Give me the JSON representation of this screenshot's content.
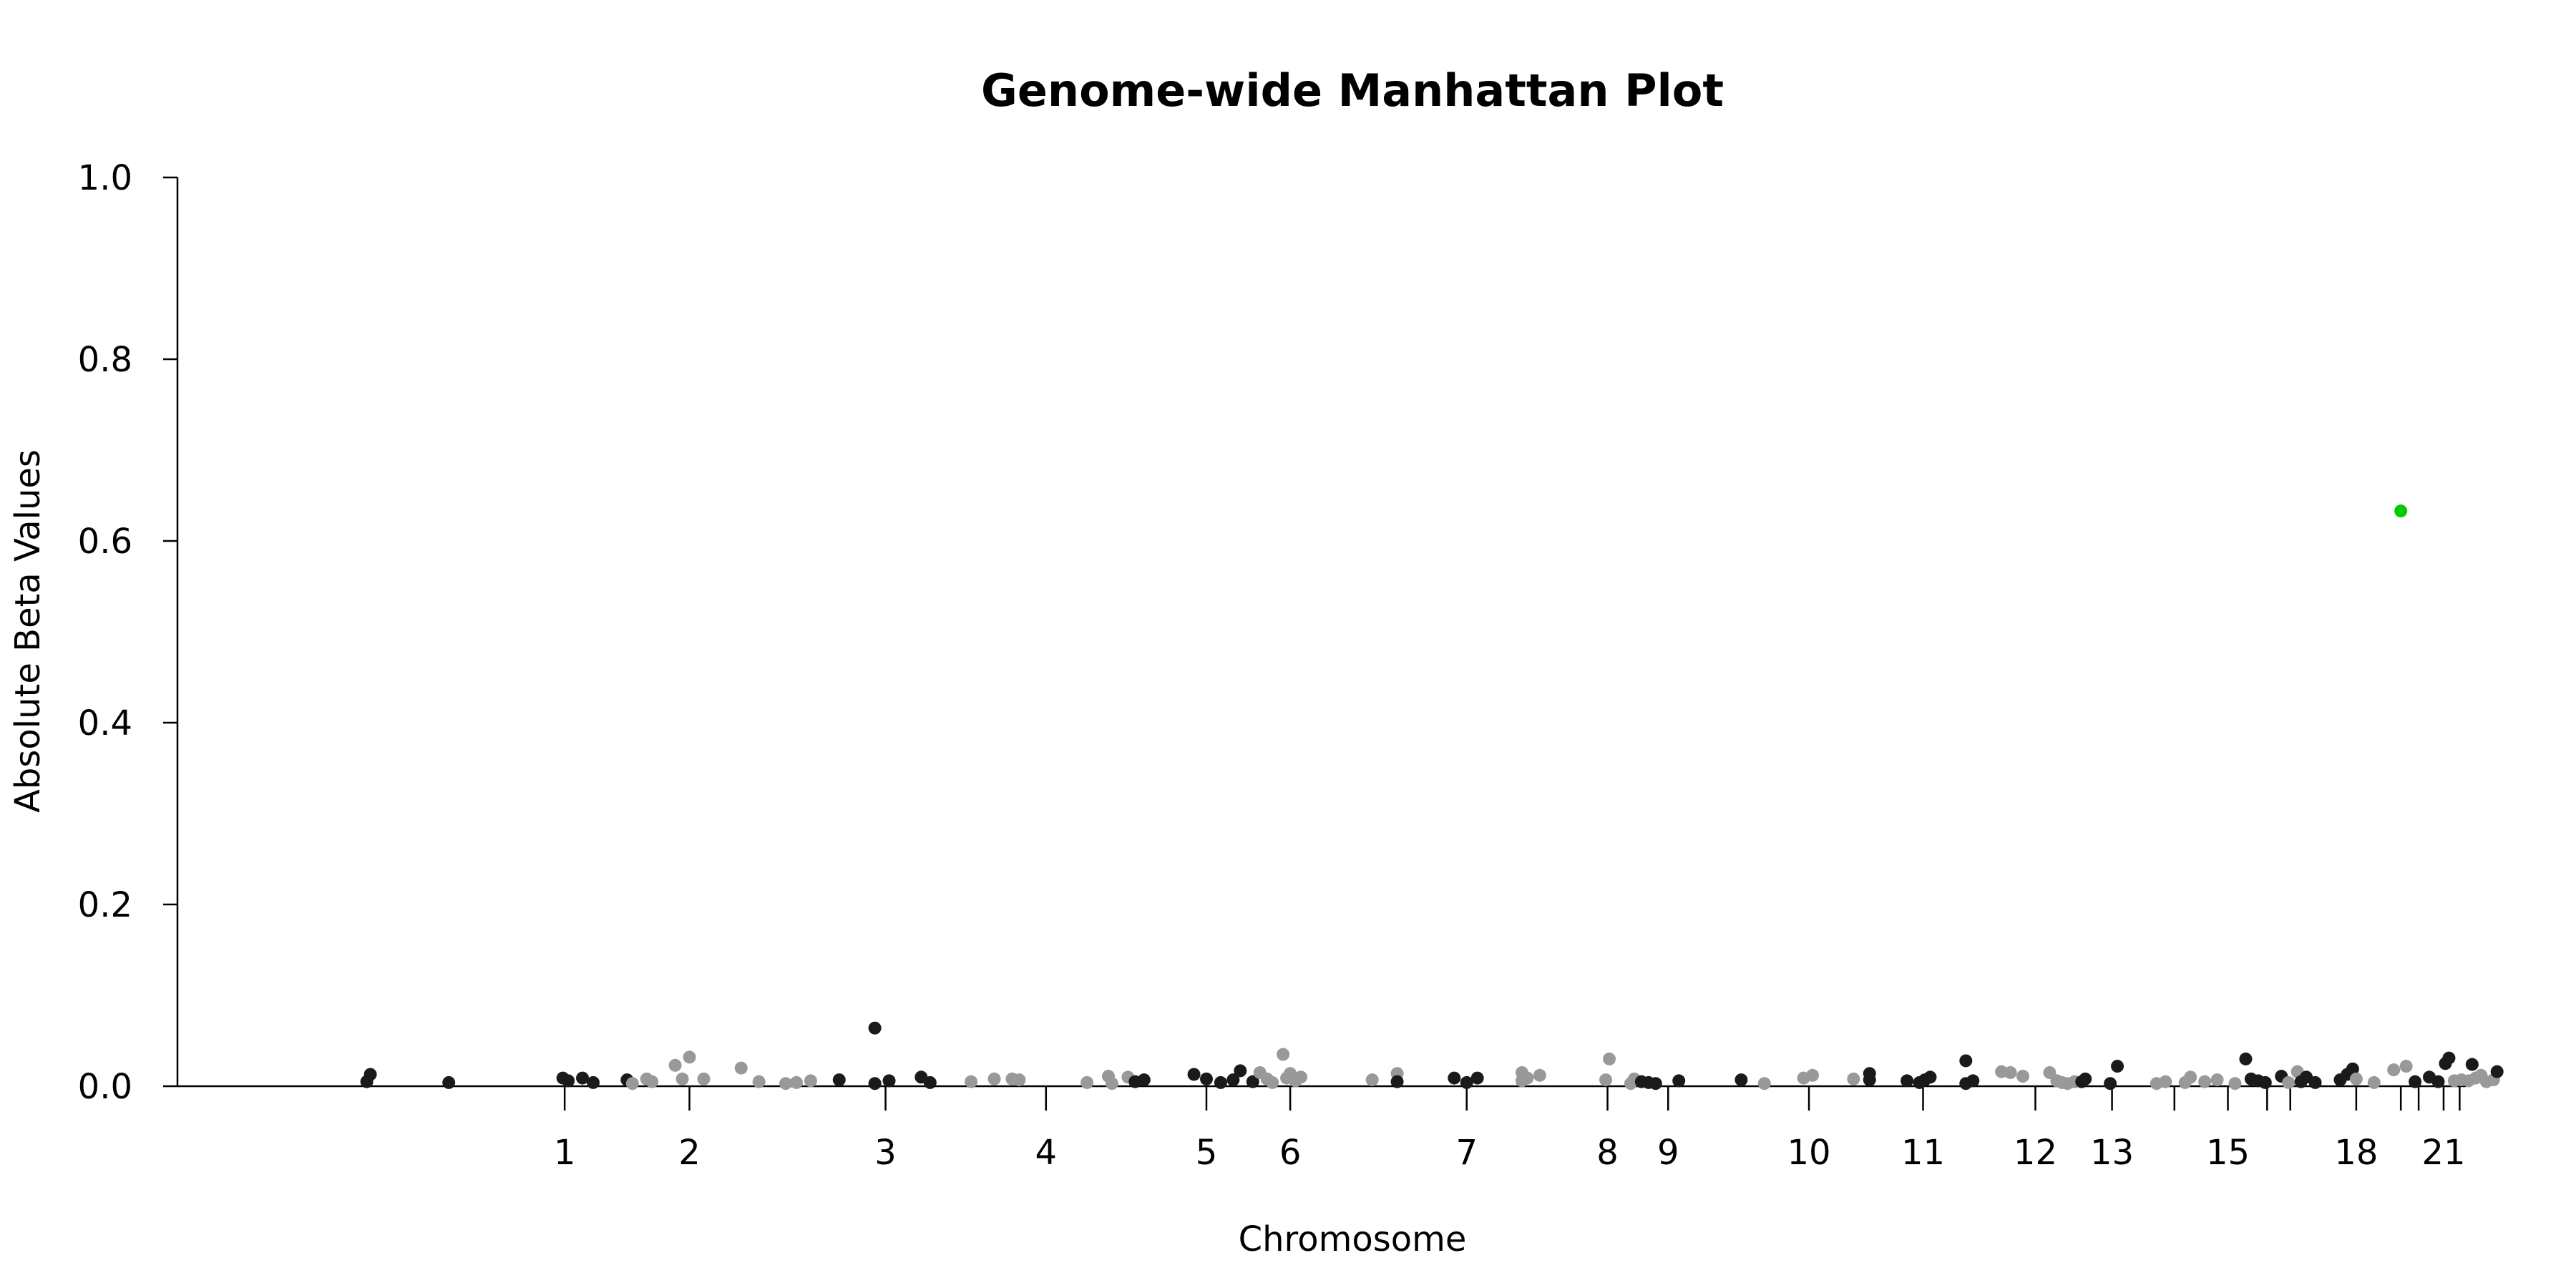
{
  "chart_data": {
    "type": "scatter",
    "title": "Genome-wide Manhattan Plot",
    "xlabel": "Chromosome",
    "ylabel": "Absolute Beta Values",
    "ylim": [
      0,
      1.0
    ],
    "yticks": [
      "0.0",
      "0.2",
      "0.4",
      "0.6",
      "0.8",
      "1.0"
    ],
    "xticks": [
      "1",
      "2",
      "3",
      "4",
      "5",
      "6",
      "7",
      "8",
      "9",
      "10",
      "11",
      "12",
      "13",
      "",
      "15",
      "",
      "",
      "18",
      "",
      "",
      "21",
      ""
    ],
    "xtick_positions": [
      2.0,
      2.7,
      3.8,
      4.7,
      5.6,
      6.07,
      7.06,
      7.85,
      8.19,
      8.98,
      9.62,
      10.25,
      10.68,
      11.03,
      11.33,
      11.55,
      11.68,
      12.05,
      12.3,
      12.4,
      12.54,
      12.63
    ],
    "xlim": [
      0.5,
      12.72
    ],
    "grid": false,
    "colors": {
      "dark": "#1a1a1a",
      "grey": "#999999",
      "highlight": "#00cc00"
    },
    "points": [
      {
        "x": 0.89,
        "y": 0.005,
        "c": "dark"
      },
      {
        "x": 0.91,
        "y": 0.013,
        "c": "dark"
      },
      {
        "x": 1.35,
        "y": 0.004,
        "c": "dark"
      },
      {
        "x": 1.99,
        "y": 0.009,
        "c": "dark"
      },
      {
        "x": 2.02,
        "y": 0.006,
        "c": "dark"
      },
      {
        "x": 2.1,
        "y": 0.009,
        "c": "dark"
      },
      {
        "x": 2.16,
        "y": 0.004,
        "c": "dark"
      },
      {
        "x": 2.35,
        "y": 0.007,
        "c": "dark"
      },
      {
        "x": 2.38,
        "y": 0.003,
        "c": "grey"
      },
      {
        "x": 2.46,
        "y": 0.008,
        "c": "grey"
      },
      {
        "x": 2.49,
        "y": 0.005,
        "c": "grey"
      },
      {
        "x": 2.62,
        "y": 0.023,
        "c": "grey"
      },
      {
        "x": 2.66,
        "y": 0.008,
        "c": "grey"
      },
      {
        "x": 2.7,
        "y": 0.032,
        "c": "grey"
      },
      {
        "x": 2.78,
        "y": 0.008,
        "c": "grey"
      },
      {
        "x": 2.99,
        "y": 0.02,
        "c": "grey"
      },
      {
        "x": 3.09,
        "y": 0.005,
        "c": "grey"
      },
      {
        "x": 3.24,
        "y": 0.003,
        "c": "grey"
      },
      {
        "x": 3.3,
        "y": 0.004,
        "c": "grey"
      },
      {
        "x": 3.38,
        "y": 0.006,
        "c": "grey"
      },
      {
        "x": 3.54,
        "y": 0.007,
        "c": "dark"
      },
      {
        "x": 3.74,
        "y": 0.064,
        "c": "dark"
      },
      {
        "x": 3.74,
        "y": 0.003,
        "c": "dark"
      },
      {
        "x": 3.82,
        "y": 0.006,
        "c": "dark"
      },
      {
        "x": 4.0,
        "y": 0.01,
        "c": "dark"
      },
      {
        "x": 4.05,
        "y": 0.004,
        "c": "dark"
      },
      {
        "x": 4.28,
        "y": 0.005,
        "c": "grey"
      },
      {
        "x": 4.41,
        "y": 0.008,
        "c": "grey"
      },
      {
        "x": 4.51,
        "y": 0.008,
        "c": "grey"
      },
      {
        "x": 4.55,
        "y": 0.007,
        "c": "grey"
      },
      {
        "x": 4.93,
        "y": 0.004,
        "c": "grey"
      },
      {
        "x": 5.05,
        "y": 0.011,
        "c": "grey"
      },
      {
        "x": 5.07,
        "y": 0.003,
        "c": "grey"
      },
      {
        "x": 5.16,
        "y": 0.01,
        "c": "grey"
      },
      {
        "x": 5.2,
        "y": 0.005,
        "c": "dark"
      },
      {
        "x": 5.25,
        "y": 0.007,
        "c": "dark"
      },
      {
        "x": 5.53,
        "y": 0.013,
        "c": "dark"
      },
      {
        "x": 5.6,
        "y": 0.008,
        "c": "dark"
      },
      {
        "x": 5.68,
        "y": 0.004,
        "c": "dark"
      },
      {
        "x": 5.75,
        "y": 0.007,
        "c": "dark"
      },
      {
        "x": 5.79,
        "y": 0.017,
        "c": "dark"
      },
      {
        "x": 5.86,
        "y": 0.005,
        "c": "dark"
      },
      {
        "x": 5.9,
        "y": 0.015,
        "c": "grey"
      },
      {
        "x": 5.94,
        "y": 0.008,
        "c": "grey"
      },
      {
        "x": 5.97,
        "y": 0.004,
        "c": "grey"
      },
      {
        "x": 6.03,
        "y": 0.035,
        "c": "grey"
      },
      {
        "x": 6.05,
        "y": 0.009,
        "c": "grey"
      },
      {
        "x": 6.07,
        "y": 0.014,
        "c": "grey"
      },
      {
        "x": 6.1,
        "y": 0.006,
        "c": "grey"
      },
      {
        "x": 6.13,
        "y": 0.01,
        "c": "grey"
      },
      {
        "x": 6.53,
        "y": 0.007,
        "c": "grey"
      },
      {
        "x": 6.67,
        "y": 0.014,
        "c": "grey"
      },
      {
        "x": 6.67,
        "y": 0.005,
        "c": "dark"
      },
      {
        "x": 6.99,
        "y": 0.009,
        "c": "dark"
      },
      {
        "x": 7.06,
        "y": 0.004,
        "c": "dark"
      },
      {
        "x": 7.12,
        "y": 0.009,
        "c": "dark"
      },
      {
        "x": 7.37,
        "y": 0.015,
        "c": "grey"
      },
      {
        "x": 7.37,
        "y": 0.006,
        "c": "grey"
      },
      {
        "x": 7.4,
        "y": 0.009,
        "c": "grey"
      },
      {
        "x": 7.47,
        "y": 0.012,
        "c": "grey"
      },
      {
        "x": 7.84,
        "y": 0.007,
        "c": "grey"
      },
      {
        "x": 7.86,
        "y": 0.03,
        "c": "grey"
      },
      {
        "x": 7.98,
        "y": 0.003,
        "c": "grey"
      },
      {
        "x": 8.0,
        "y": 0.008,
        "c": "grey"
      },
      {
        "x": 8.04,
        "y": 0.005,
        "c": "dark"
      },
      {
        "x": 8.08,
        "y": 0.004,
        "c": "dark"
      },
      {
        "x": 8.12,
        "y": 0.003,
        "c": "dark"
      },
      {
        "x": 8.25,
        "y": 0.006,
        "c": "dark"
      },
      {
        "x": 8.6,
        "y": 0.007,
        "c": "dark"
      },
      {
        "x": 8.73,
        "y": 0.003,
        "c": "grey"
      },
      {
        "x": 8.95,
        "y": 0.009,
        "c": "grey"
      },
      {
        "x": 9.0,
        "y": 0.012,
        "c": "grey"
      },
      {
        "x": 9.23,
        "y": 0.008,
        "c": "grey"
      },
      {
        "x": 9.32,
        "y": 0.014,
        "c": "dark"
      },
      {
        "x": 9.32,
        "y": 0.007,
        "c": "dark"
      },
      {
        "x": 9.53,
        "y": 0.006,
        "c": "dark"
      },
      {
        "x": 9.6,
        "y": 0.004,
        "c": "dark"
      },
      {
        "x": 9.63,
        "y": 0.007,
        "c": "dark"
      },
      {
        "x": 9.66,
        "y": 0.01,
        "c": "dark"
      },
      {
        "x": 9.86,
        "y": 0.028,
        "c": "dark"
      },
      {
        "x": 9.86,
        "y": 0.003,
        "c": "dark"
      },
      {
        "x": 9.9,
        "y": 0.006,
        "c": "dark"
      },
      {
        "x": 10.06,
        "y": 0.016,
        "c": "grey"
      },
      {
        "x": 10.11,
        "y": 0.015,
        "c": "grey"
      },
      {
        "x": 10.18,
        "y": 0.011,
        "c": "grey"
      },
      {
        "x": 10.33,
        "y": 0.015,
        "c": "grey"
      },
      {
        "x": 10.37,
        "y": 0.006,
        "c": "grey"
      },
      {
        "x": 10.4,
        "y": 0.004,
        "c": "grey"
      },
      {
        "x": 10.43,
        "y": 0.003,
        "c": "grey"
      },
      {
        "x": 10.47,
        "y": 0.005,
        "c": "grey"
      },
      {
        "x": 10.51,
        "y": 0.005,
        "c": "dark"
      },
      {
        "x": 10.53,
        "y": 0.008,
        "c": "dark"
      },
      {
        "x": 10.67,
        "y": 0.003,
        "c": "dark"
      },
      {
        "x": 10.71,
        "y": 0.022,
        "c": "dark"
      },
      {
        "x": 10.93,
        "y": 0.003,
        "c": "grey"
      },
      {
        "x": 10.98,
        "y": 0.005,
        "c": "grey"
      },
      {
        "x": 11.09,
        "y": 0.004,
        "c": "grey"
      },
      {
        "x": 11.12,
        "y": 0.01,
        "c": "grey"
      },
      {
        "x": 11.2,
        "y": 0.005,
        "c": "grey"
      },
      {
        "x": 11.27,
        "y": 0.007,
        "c": "grey"
      },
      {
        "x": 11.37,
        "y": 0.003,
        "c": "grey"
      },
      {
        "x": 11.43,
        "y": 0.03,
        "c": "dark"
      },
      {
        "x": 11.46,
        "y": 0.008,
        "c": "dark"
      },
      {
        "x": 11.5,
        "y": 0.006,
        "c": "dark"
      },
      {
        "x": 11.54,
        "y": 0.004,
        "c": "dark"
      },
      {
        "x": 11.63,
        "y": 0.011,
        "c": "dark"
      },
      {
        "x": 11.67,
        "y": 0.004,
        "c": "grey"
      },
      {
        "x": 11.72,
        "y": 0.016,
        "c": "grey"
      },
      {
        "x": 11.74,
        "y": 0.005,
        "c": "dark"
      },
      {
        "x": 11.77,
        "y": 0.01,
        "c": "dark"
      },
      {
        "x": 11.82,
        "y": 0.004,
        "c": "dark"
      },
      {
        "x": 11.96,
        "y": 0.007,
        "c": "dark"
      },
      {
        "x": 12.0,
        "y": 0.013,
        "c": "dark"
      },
      {
        "x": 12.03,
        "y": 0.019,
        "c": "dark"
      },
      {
        "x": 12.05,
        "y": 0.008,
        "c": "grey"
      },
      {
        "x": 12.15,
        "y": 0.004,
        "c": "grey"
      },
      {
        "x": 12.26,
        "y": 0.018,
        "c": "grey"
      },
      {
        "x": 12.33,
        "y": 0.022,
        "c": "grey"
      },
      {
        "x": 12.38,
        "y": 0.005,
        "c": "dark"
      },
      {
        "x": 12.46,
        "y": 0.01,
        "c": "dark"
      },
      {
        "x": 12.51,
        "y": 0.005,
        "c": "dark"
      },
      {
        "x": 12.55,
        "y": 0.025,
        "c": "dark"
      },
      {
        "x": 12.57,
        "y": 0.031,
        "c": "dark"
      },
      {
        "x": 12.6,
        "y": 0.006,
        "c": "grey"
      },
      {
        "x": 12.64,
        "y": 0.007,
        "c": "grey"
      },
      {
        "x": 12.68,
        "y": 0.006,
        "c": "grey"
      },
      {
        "x": 12.7,
        "y": 0.024,
        "c": "dark"
      },
      {
        "x": 12.72,
        "y": 0.009,
        "c": "grey"
      },
      {
        "x": 12.75,
        "y": 0.012,
        "c": "grey"
      },
      {
        "x": 12.78,
        "y": 0.005,
        "c": "grey"
      },
      {
        "x": 12.82,
        "y": 0.007,
        "c": "grey"
      },
      {
        "x": 12.84,
        "y": 0.016,
        "c": "dark"
      },
      {
        "x": 12.3,
        "y": 0.633,
        "c": "highlight"
      }
    ]
  }
}
